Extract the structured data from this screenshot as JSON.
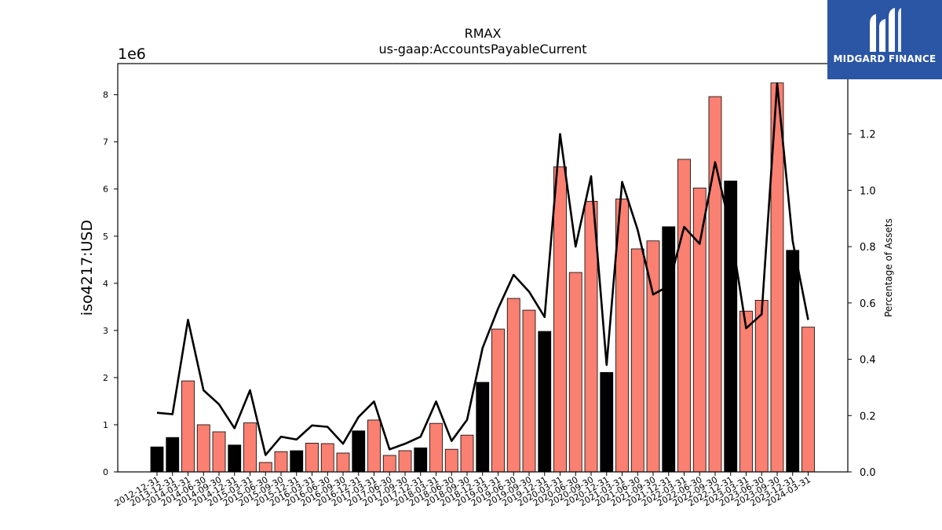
{
  "chart_data": {
    "type": "bar",
    "title": "RMAX",
    "subtitle": "us-gaap:AccountsPayableCurrent",
    "ylabel": "iso4217:USD",
    "y2label": "Percentage of Assets",
    "y_scale_label": "1e6",
    "ylim": [
      0,
      8.66
    ],
    "y2lim": [
      0,
      1.45
    ],
    "yticks": [
      0,
      1,
      2,
      3,
      4,
      5,
      6,
      7,
      8
    ],
    "y2ticks": [
      0.0,
      0.2,
      0.4,
      0.6,
      0.8,
      1.0,
      1.2
    ],
    "categories": [
      "2012-12-31",
      "2013-12-31",
      "2014-03-31",
      "2014-06-30",
      "2014-09-30",
      "2014-12-31",
      "2015-03-31",
      "2015-06-30",
      "2015-09-30",
      "2015-12-31",
      "2016-03-31",
      "2016-06-30",
      "2016-09-30",
      "2016-12-31",
      "2017-03-31",
      "2017-06-30",
      "2017-09-30",
      "2017-12-31",
      "2018-03-31",
      "2018-06-30",
      "2018-09-30",
      "2018-12-31",
      "2019-03-31",
      "2019-06-30",
      "2019-09-30",
      "2019-12-31",
      "2020-03-31",
      "2020-06-30",
      "2020-09-30",
      "2020-12-31",
      "2021-03-31",
      "2021-06-30",
      "2021-09-30",
      "2021-12-31",
      "2022-03-31",
      "2022-06-30",
      "2022-09-30",
      "2022-12-31",
      "2023-03-31",
      "2023-06-30",
      "2023-09-30",
      "2023-12-31",
      "2024-03-31"
    ],
    "series": [
      {
        "values": [
          0.53,
          0.73,
          1.93,
          1.0,
          0.85,
          0.57,
          1.04,
          0.2,
          0.43,
          0.45,
          0.61,
          0.6,
          0.4,
          0.87,
          1.1,
          0.35,
          0.45,
          0.51,
          1.03,
          0.48,
          0.78,
          1.9,
          3.03,
          3.68,
          3.43,
          2.98,
          6.47,
          4.23,
          5.74,
          2.11,
          5.79,
          4.73,
          4.9,
          5.2,
          6.63,
          6.02,
          7.96,
          6.17,
          3.41,
          3.64,
          8.25,
          4.7,
          3.07
        ]
      },
      {
        "axis": "right",
        "type": "line",
        "values": [
          0.21,
          0.205,
          0.54,
          0.29,
          0.24,
          0.155,
          0.29,
          0.06,
          0.125,
          0.115,
          0.165,
          0.16,
          0.1,
          0.195,
          0.25,
          0.08,
          0.1,
          0.125,
          0.25,
          0.11,
          0.185,
          0.44,
          0.58,
          0.7,
          0.64,
          0.55,
          1.2,
          0.8,
          1.05,
          0.38,
          1.03,
          0.86,
          0.63,
          0.66,
          0.87,
          0.81,
          1.1,
          0.86,
          0.51,
          0.56,
          1.38,
          0.82,
          0.54
        ]
      }
    ],
    "bar_colors": [
      "#000000",
      "#000000",
      "#fa8072",
      "#fa8072",
      "#fa8072",
      "#000000",
      "#fa8072",
      "#fa8072",
      "#fa8072",
      "#000000",
      "#fa8072",
      "#fa8072",
      "#fa8072",
      "#000000",
      "#fa8072",
      "#fa8072",
      "#fa8072",
      "#000000",
      "#fa8072",
      "#fa8072",
      "#fa8072",
      "#000000",
      "#fa8072",
      "#fa8072",
      "#fa8072",
      "#000000",
      "#fa8072",
      "#fa8072",
      "#fa8072",
      "#000000",
      "#fa8072",
      "#fa8072",
      "#fa8072",
      "#000000",
      "#fa8072",
      "#fa8072",
      "#fa8072",
      "#000000",
      "#fa8072",
      "#fa8072",
      "#fa8072",
      "#000000",
      "#fa8072"
    ],
    "line_color": "#000000",
    "grid": false,
    "legend": "none"
  },
  "logo": {
    "text": "MIDGARD FINANCE",
    "background": "#2b55a5"
  }
}
